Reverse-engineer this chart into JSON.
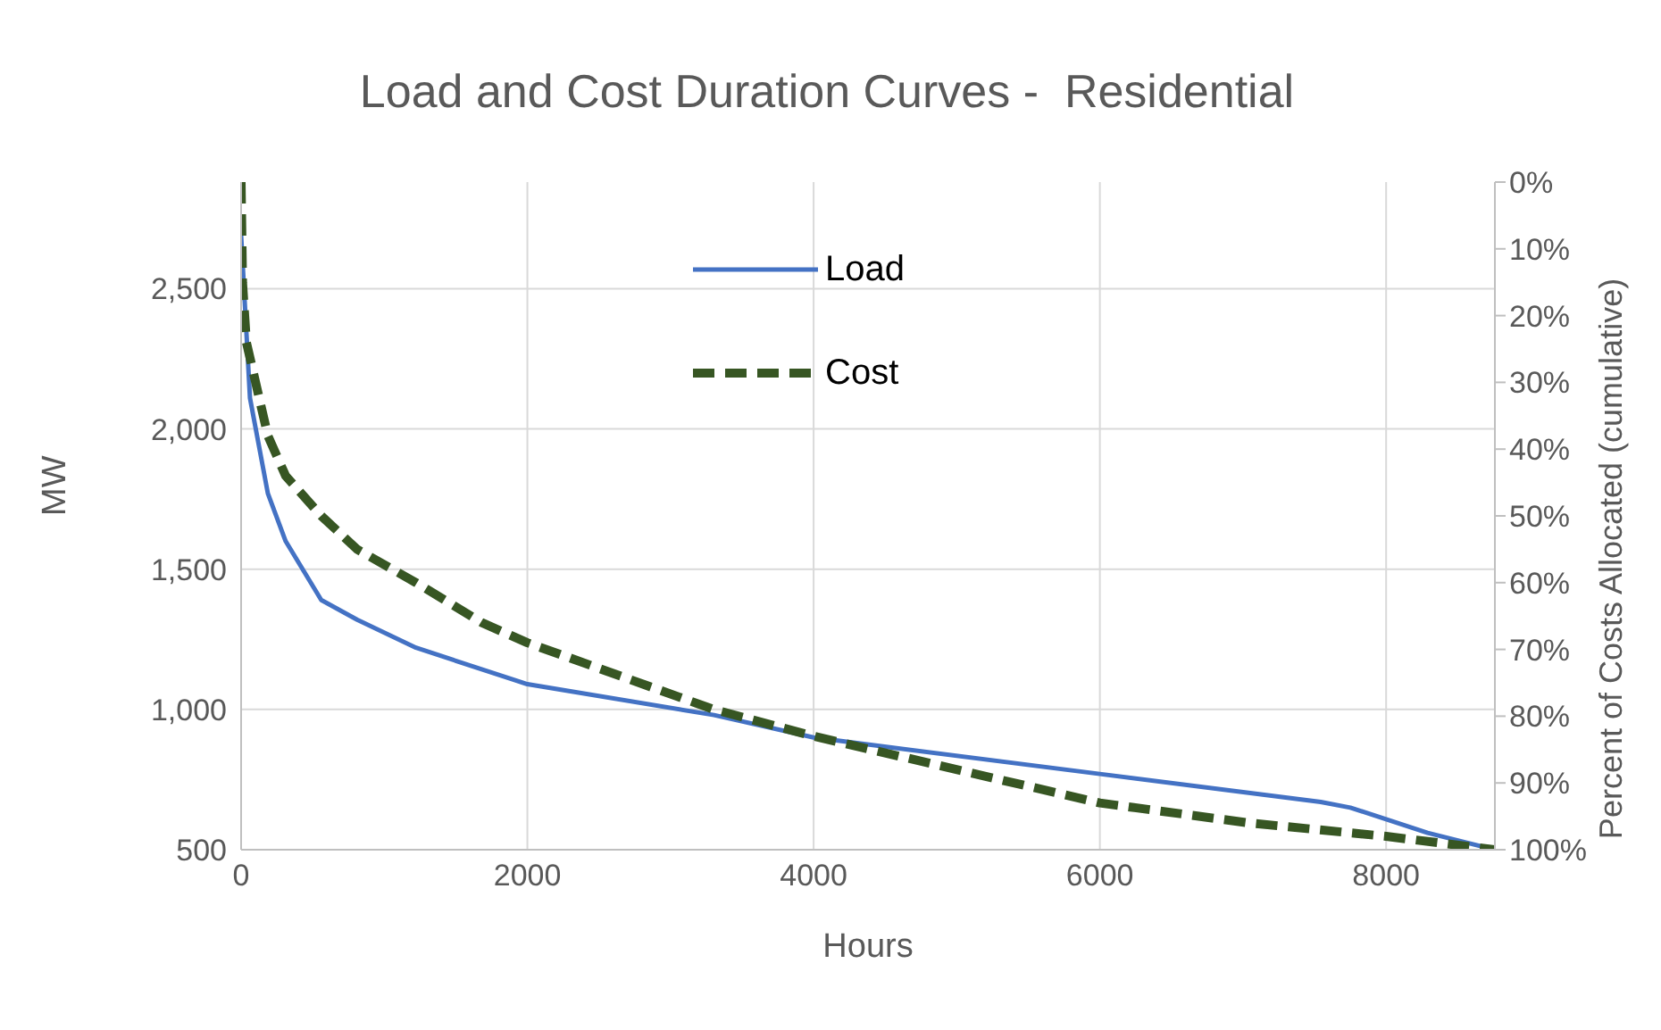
{
  "chart_data": {
    "type": "line",
    "title": "Load and Cost Duration Curves -  Residential",
    "xlabel": "Hours",
    "ylabel": "MW",
    "y2label": "Percent of Costs Allocated (cumulative)",
    "xlim": [
      0,
      8760
    ],
    "xticks": [
      0,
      2000,
      4000,
      6000,
      8000
    ],
    "ylim": [
      500,
      2880
    ],
    "yticks": [
      500,
      {
        "value": 1000,
        "label": "1,000"
      },
      {
        "value": 1500,
        "label": "1,500"
      },
      {
        "value": 2000,
        "label": "2,000"
      },
      {
        "value": 2500,
        "label": "2,500"
      }
    ],
    "y2lim": [
      100,
      0
    ],
    "y2ticks": [
      {
        "value": 0,
        "label": "0%"
      },
      {
        "value": 10,
        "label": "10%"
      },
      {
        "value": 20,
        "label": "20%"
      },
      {
        "value": 30,
        "label": "30%"
      },
      {
        "value": 40,
        "label": "40%"
      },
      {
        "value": 50,
        "label": "50%"
      },
      {
        "value": 60,
        "label": "60%"
      },
      {
        "value": 70,
        "label": "70%"
      },
      {
        "value": 80,
        "label": "80%"
      },
      {
        "value": 90,
        "label": "90%"
      },
      {
        "value": 100,
        "label": "100%"
      }
    ],
    "grid": true,
    "legend": "top",
    "marker": "none",
    "series": [
      {
        "name": "Load",
        "color": "#4472c4",
        "line_style": "solid",
        "x": [
          0,
          62,
          187,
          311,
          560,
          810,
          1222,
          2000,
          3304,
          4000,
          6000,
          7543,
          7750,
          8290,
          8760
        ],
        "values": [
          2690,
          2110,
          1770,
          1600,
          1390,
          1320,
          1220,
          1090,
          980,
          900,
          770,
          670,
          650,
          560,
          500
        ]
      },
      {
        "name": "Cost",
        "color": "#375623",
        "line_style": "dashed",
        "axis": "y2",
        "x": [
          0,
          10,
          37,
          187,
          311,
          560,
          810,
          1222,
          1683,
          2000,
          3304,
          4000,
          6000,
          7045,
          8000,
          8760
        ],
        "values": [
          0,
          15,
          24,
          38,
          44,
          50,
          55,
          60,
          66,
          69,
          79,
          83,
          93,
          96,
          98,
          100
        ]
      }
    ]
  }
}
